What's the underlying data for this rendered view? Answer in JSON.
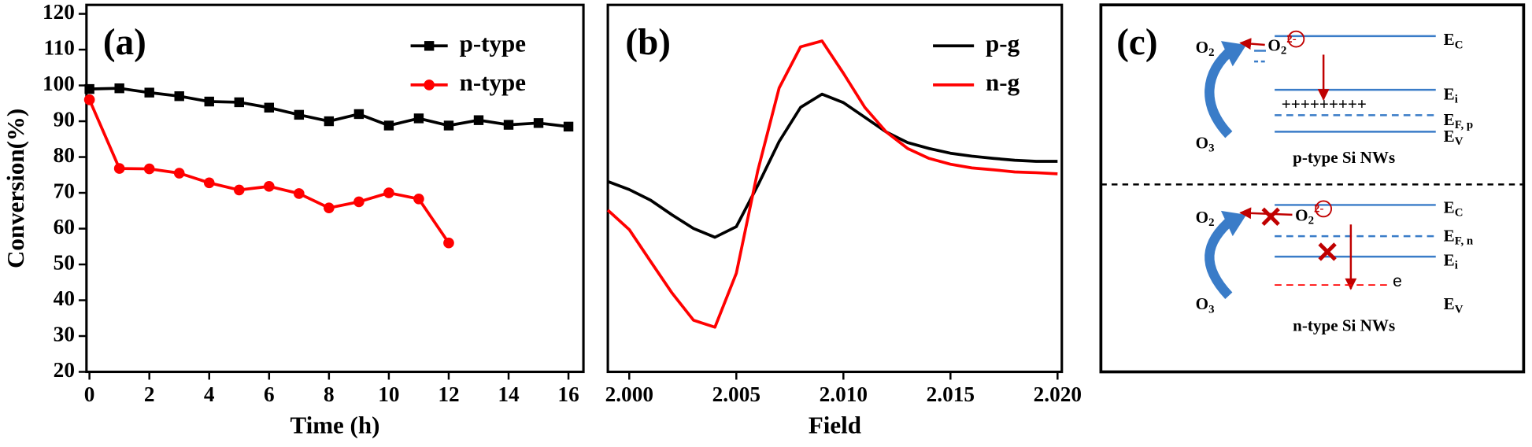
{
  "chart_data": [
    {
      "type": "line",
      "annotation": "(a)",
      "x": [
        0,
        1,
        2,
        3,
        4,
        5,
        6,
        7,
        8,
        9,
        10,
        11,
        12,
        13,
        14,
        15,
        16
      ],
      "series": [
        {
          "name": "p-type",
          "color": "#000000",
          "marker": "square",
          "values": [
            99,
            99.2,
            98,
            97,
            95.5,
            95.3,
            93.8,
            91.8,
            90,
            92,
            88.8,
            90.8,
            88.8,
            90.3,
            89,
            89.5,
            88.5
          ]
        },
        {
          "name": "n-type",
          "color": "#ff0000",
          "marker": "circle",
          "values": [
            96,
            76.8,
            76.7,
            75.5,
            72.8,
            70.8,
            71.8,
            69.8,
            65.8,
            67.5,
            70,
            68.3,
            56,
            null,
            null,
            null,
            null
          ]
        }
      ],
      "xlabel": "Time (h)",
      "ylabel": "Conversion(%)",
      "xlim": [
        -0.1,
        16.5
      ],
      "ylim": [
        20,
        122.5
      ],
      "xticks": [
        0,
        2,
        4,
        6,
        8,
        10,
        12,
        14,
        16
      ],
      "yticks": [
        20,
        30,
        40,
        50,
        60,
        70,
        80,
        90,
        100,
        110,
        120
      ],
      "legend": "upper right"
    },
    {
      "type": "line",
      "annotation": "(b)",
      "x": [
        1.999,
        2.0,
        2.001,
        2.002,
        2.003,
        2.004,
        2.005,
        2.006,
        2.007,
        2.008,
        2.009,
        2.01,
        2.011,
        2.012,
        2.013,
        2.014,
        2.015,
        2.016,
        2.017,
        2.018,
        2.019,
        2.02
      ],
      "series": [
        {
          "name": "p-g",
          "color": "#000000",
          "values": [
            51.9,
            49.7,
            46.8,
            42.8,
            39.1,
            36.7,
            39.6,
            50.8,
            62.8,
            72.1,
            75.7,
            73.4,
            69.4,
            65.4,
            62.5,
            60.9,
            59.6,
            58.8,
            58.2,
            57.7,
            57.4,
            57.4
          ]
        },
        {
          "name": "n-g",
          "color": "#ff0000",
          "values": [
            44.1,
            38.8,
            30.1,
            21.5,
            14.1,
            12.2,
            26.9,
            54.8,
            77.4,
            88.6,
            90.2,
            81.4,
            72.1,
            65.4,
            60.9,
            58.2,
            56.6,
            55.6,
            55.1,
            54.5,
            54.3,
            54.0
          ]
        }
      ],
      "xlabel": "Field",
      "xlim": [
        1.999,
        2.0202
      ],
      "xticks": [
        {
          "value": 2.0,
          "label": "2.000"
        },
        2.005,
        {
          "value": 2.01,
          "label": "2.010"
        },
        2.015,
        {
          "value": 2.02,
          "label": "2.020"
        }
      ],
      "legend": "upper right"
    }
  ],
  "diagram": {
    "annotation": "(c)",
    "panels": [
      {
        "caption": "p-type Si NWs",
        "carriers": "+++++++++",
        "species": [
          {
            "base": "O",
            "sub": "2"
          },
          {
            "base": "O",
            "sub": "3"
          },
          {
            "base": "O",
            "sub": "2",
            "sup": "2-"
          }
        ],
        "levels": [
          {
            "base": "E",
            "sub": "C"
          },
          {
            "base": "E",
            "sub": "i"
          },
          {
            "base": "E",
            "sub": "F, p"
          },
          {
            "base": "E",
            "sub": "V"
          }
        ]
      },
      {
        "caption": "n-type Si NWs",
        "carriers": "e",
        "species": [
          {
            "base": "O",
            "sub": "2"
          },
          {
            "base": "O",
            "sub": "3"
          },
          {
            "base": "O",
            "sub": "2",
            "sup": "2-"
          }
        ],
        "levels": [
          {
            "base": "E",
            "sub": "C"
          },
          {
            "base": "E",
            "sub": "F, n"
          },
          {
            "base": "E",
            "sub": "i"
          },
          {
            "base": "E",
            "sub": "V"
          }
        ]
      }
    ]
  }
}
